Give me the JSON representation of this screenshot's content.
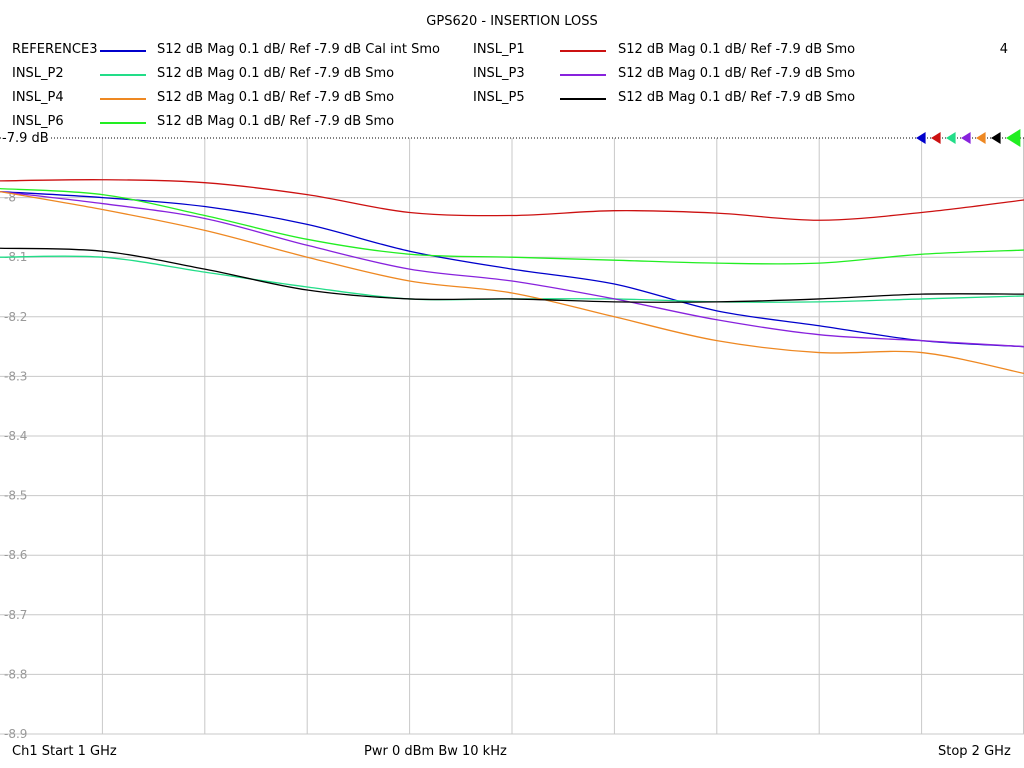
{
  "chart_data": {
    "type": "line",
    "title": "GPS620 - INSERTION LOSS",
    "xlabel": "",
    "ylabel": "",
    "xlim": [
      1,
      2
    ],
    "ylim": [
      -8.9,
      -7.9
    ],
    "y_ticks": [
      -8,
      -8.1,
      -8.2,
      -8.3,
      -8.4,
      -8.5,
      -8.6,
      -8.7,
      -8.8,
      -8.9
    ],
    "y_tick_labels": [
      "-8",
      "-8.1",
      "-8.2",
      "-8.3",
      "-8.4",
      "-8.5",
      "-8.6",
      "-8.7",
      "-8.8",
      "-8.9"
    ],
    "x_divisions": 10,
    "grid": true,
    "reference_label": "-7.9 dB",
    "x": [
      1.0,
      1.1,
      1.2,
      1.3,
      1.4,
      1.5,
      1.6,
      1.7,
      1.8,
      1.9,
      2.0
    ],
    "series": [
      {
        "name": "REFERENCE3",
        "color": "#0000cc",
        "description": "S12  dB Mag  0.1 dB/ Ref -7.9 dB  Cal int Smo",
        "values": [
          -7.99,
          -8.0,
          -8.015,
          -8.045,
          -8.09,
          -8.12,
          -8.145,
          -8.19,
          -8.215,
          -8.24,
          -8.25
        ]
      },
      {
        "name": "INSL_P1",
        "color": "#cc1111",
        "description": "S12  dB Mag  0.1 dB/ Ref -7.9 dB  Smo",
        "values": [
          -7.972,
          -7.97,
          -7.975,
          -7.995,
          -8.025,
          -8.03,
          -8.022,
          -8.026,
          -8.038,
          -8.025,
          -8.004
        ]
      },
      {
        "name": "INSL_P2",
        "color": "#22dd88",
        "description": "S12  dB Mag  0.1 dB/ Ref -7.9 dB  Smo",
        "values": [
          -8.1,
          -8.1,
          -8.125,
          -8.15,
          -8.17,
          -8.17,
          -8.17,
          -8.175,
          -8.175,
          -8.17,
          -8.165
        ]
      },
      {
        "name": "INSL_P3",
        "color": "#8822dd",
        "description": "S12  dB Mag  0.1 dB/ Ref -7.9 dB  Smo",
        "values": [
          -7.99,
          -8.01,
          -8.035,
          -8.08,
          -8.12,
          -8.14,
          -8.17,
          -8.205,
          -8.23,
          -8.24,
          -8.25
        ]
      },
      {
        "name": "INSL_P4",
        "color": "#ee8822",
        "description": "S12  dB Mag  0.1 dB/ Ref -7.9 dB  Smo",
        "values": [
          -7.99,
          -8.02,
          -8.055,
          -8.1,
          -8.14,
          -8.16,
          -8.2,
          -8.24,
          -8.26,
          -8.26,
          -8.295
        ]
      },
      {
        "name": "INSL_P5",
        "color": "#000000",
        "description": "S12  dB Mag  0.1 dB/ Ref -7.9 dB  Smo",
        "values": [
          -8.085,
          -8.09,
          -8.12,
          -8.155,
          -8.17,
          -8.17,
          -8.175,
          -8.175,
          -8.17,
          -8.162,
          -8.162
        ]
      },
      {
        "name": "INSL_P6",
        "color": "#22ee22",
        "description": "S12  dB Mag  0.1 dB/ Ref -7.9 dB  Smo",
        "values": [
          -7.985,
          -7.995,
          -8.03,
          -8.07,
          -8.095,
          -8.1,
          -8.105,
          -8.11,
          -8.11,
          -8.095,
          -8.088
        ]
      }
    ],
    "marker_colors": [
      "#0000cc",
      "#cc1111",
      "#22dd88",
      "#8822dd",
      "#ee8822",
      "#000000",
      "#22ee22"
    ]
  },
  "legend_left": [
    {
      "name": "REFERENCE3",
      "color": "#0000cc",
      "desc": "S12  dB Mag  0.1 dB/ Ref -7.9 dB  Cal int Smo"
    },
    {
      "name": "INSL_P2",
      "color": "#22dd88",
      "desc": "S12  dB Mag  0.1 dB/ Ref -7.9 dB  Smo"
    },
    {
      "name": "INSL_P4",
      "color": "#ee8822",
      "desc": "S12  dB Mag  0.1 dB/ Ref -7.9 dB  Smo"
    },
    {
      "name": "INSL_P6",
      "color": "#22ee22",
      "desc": "S12  dB Mag  0.1 dB/ Ref -7.9 dB  Smo"
    }
  ],
  "legend_right": [
    {
      "name": "INSL_P1",
      "color": "#cc1111",
      "desc": "S12  dB Mag  0.1 dB/ Ref -7.9 dB  Smo"
    },
    {
      "name": "INSL_P3",
      "color": "#8822dd",
      "desc": "S12  dB Mag  0.1 dB/ Ref -7.9 dB  Smo"
    },
    {
      "name": "INSL_P5",
      "color": "#000000",
      "desc": "S12  dB Mag  0.1 dB/ Ref -7.9 dB  Smo"
    }
  ],
  "channel_number": "4",
  "footer": {
    "start": "Ch1  Start  1 GHz",
    "power": "Pwr  0 dBm  Bw  10 kHz",
    "stop": "Stop  2 GHz"
  }
}
